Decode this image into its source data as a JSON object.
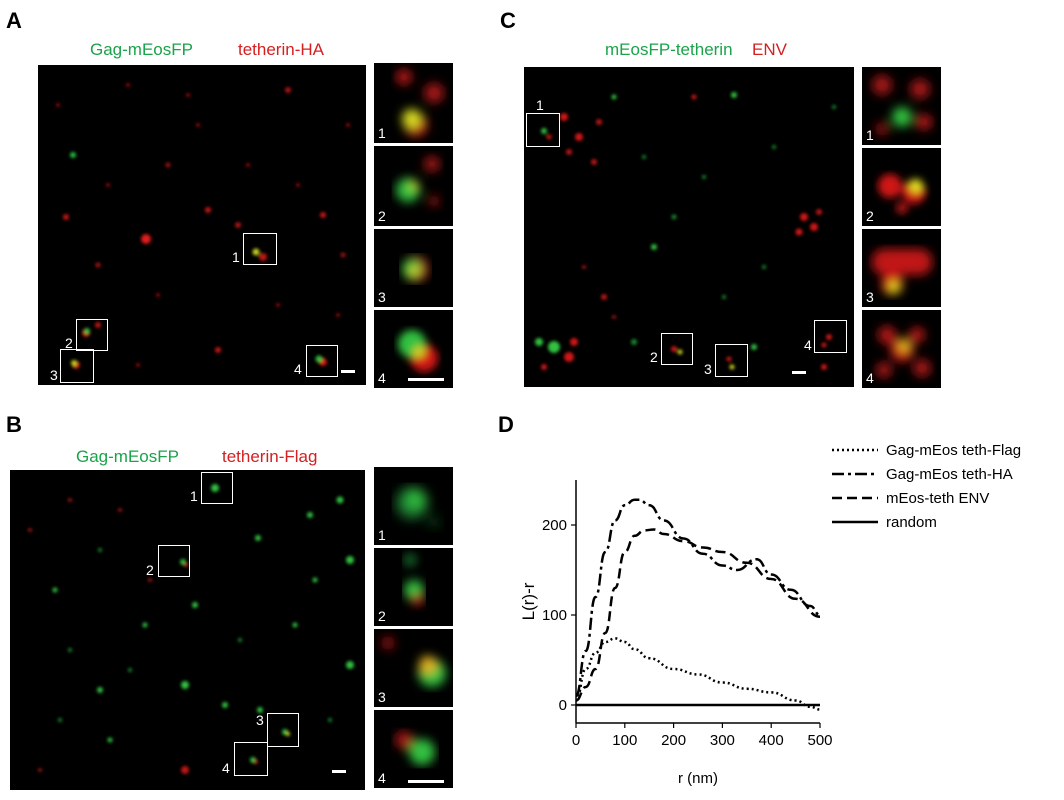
{
  "panels": {
    "A": {
      "letter": "A",
      "caption_green": "Gag-mEosFP",
      "caption_red": "tetherin-HA",
      "box_labels": [
        "1",
        "2",
        "3",
        "4"
      ],
      "inset_labels": [
        "1",
        "2",
        "3",
        "4"
      ]
    },
    "B": {
      "letter": "B",
      "caption_green": "Gag-mEosFP",
      "caption_red": "tetherin-Flag",
      "box_labels": [
        "1",
        "2",
        "3",
        "4"
      ],
      "inset_labels": [
        "1",
        "2",
        "3",
        "4"
      ]
    },
    "C": {
      "letter": "C",
      "caption_green": "mEosFP-tetherin",
      "caption_red": "ENV",
      "box_labels": [
        "1",
        "2",
        "3",
        "4"
      ],
      "inset_labels": [
        "1",
        "2",
        "3",
        "4"
      ]
    },
    "D": {
      "letter": "D"
    }
  },
  "colors": {
    "green_label": "#1aa34a",
    "red_label": "#d42020",
    "micro_bg": "#000000"
  },
  "chart_data": {
    "type": "line",
    "title": "",
    "xlabel": "r (nm)",
    "ylabel": "L(r)-r",
    "xlim": [
      0,
      500
    ],
    "ylim": [
      -20,
      250
    ],
    "xticks": [
      0,
      100,
      200,
      300,
      400,
      500
    ],
    "yticks": [
      0,
      100,
      200
    ],
    "grid": false,
    "legend_position": "top-right",
    "series": [
      {
        "name": "Gag-mEos teth-Flag",
        "style": "dotted",
        "x": [
          0,
          20,
          40,
          60,
          80,
          100,
          120,
          150,
          200,
          250,
          300,
          350,
          400,
          450,
          480,
          500
        ],
        "y": [
          5,
          40,
          58,
          70,
          74,
          70,
          62,
          52,
          40,
          34,
          25,
          18,
          14,
          5,
          -2,
          -5
        ]
      },
      {
        "name": "Gag-mEos teth-HA",
        "style": "dashdot",
        "x": [
          0,
          20,
          40,
          60,
          80,
          100,
          120,
          130,
          150,
          180,
          220,
          260,
          300,
          330,
          370,
          400,
          440,
          480,
          500
        ],
        "y": [
          10,
          60,
          120,
          170,
          205,
          222,
          228,
          228,
          222,
          205,
          185,
          168,
          155,
          150,
          162,
          145,
          128,
          110,
          100
        ]
      },
      {
        "name": "mEos-teth ENV",
        "style": "dashed",
        "x": [
          0,
          20,
          40,
          60,
          80,
          100,
          120,
          140,
          160,
          180,
          220,
          260,
          300,
          350,
          400,
          450,
          500
        ],
        "y": [
          5,
          20,
          40,
          80,
          130,
          170,
          188,
          194,
          195,
          190,
          182,
          175,
          170,
          158,
          140,
          118,
          98
        ]
      },
      {
        "name": "random",
        "style": "solid",
        "x": [
          0,
          500
        ],
        "y": [
          0,
          0
        ]
      }
    ]
  }
}
